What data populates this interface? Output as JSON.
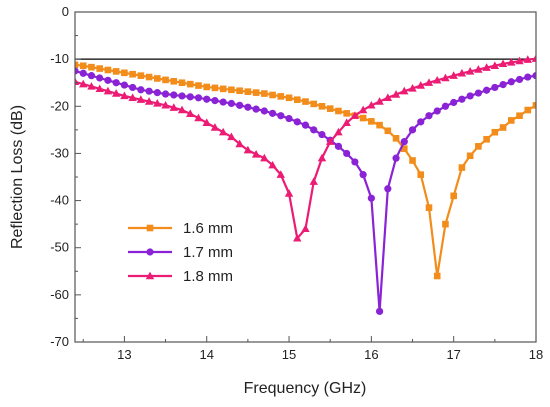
{
  "chart_data": {
    "type": "line",
    "xlabel": "Frequency (GHz)",
    "ylabel": "Reflection Loss (dB)",
    "xlim": [
      12.4,
      18
    ],
    "ylim": [
      -70,
      0
    ],
    "xticks": [
      13,
      14,
      15,
      16,
      17,
      18
    ],
    "yticks": [
      0,
      -10,
      -20,
      -30,
      -40,
      -50,
      -60,
      -70
    ],
    "reference_line": {
      "y": -10,
      "color": "#000000"
    },
    "legend_position": "lower-left",
    "series": [
      {
        "name": "1.6 mm",
        "color": "#f28c1a",
        "marker": "square",
        "x": [
          12.4,
          12.5,
          12.6,
          12.7,
          12.8,
          12.9,
          13.0,
          13.1,
          13.2,
          13.3,
          13.4,
          13.5,
          13.6,
          13.7,
          13.8,
          13.9,
          14.0,
          14.1,
          14.2,
          14.3,
          14.4,
          14.5,
          14.6,
          14.7,
          14.8,
          14.9,
          15.0,
          15.1,
          15.2,
          15.3,
          15.4,
          15.5,
          15.6,
          15.7,
          15.8,
          15.9,
          16.0,
          16.1,
          16.2,
          16.3,
          16.4,
          16.5,
          16.6,
          16.7,
          16.8,
          16.9,
          17.0,
          17.1,
          17.2,
          17.3,
          17.4,
          17.5,
          17.6,
          17.7,
          17.8,
          17.9,
          18.0
        ],
        "y": [
          -11.2,
          -11.4,
          -11.7,
          -12.0,
          -12.3,
          -12.6,
          -12.9,
          -13.2,
          -13.5,
          -13.8,
          -14.1,
          -14.4,
          -14.7,
          -15.0,
          -15.3,
          -15.6,
          -15.9,
          -16.1,
          -16.3,
          -16.5,
          -16.7,
          -16.9,
          -17.1,
          -17.3,
          -17.6,
          -17.9,
          -18.2,
          -18.6,
          -19.0,
          -19.5,
          -20.0,
          -20.5,
          -21.0,
          -21.5,
          -22.0,
          -22.5,
          -23.2,
          -24.0,
          -25.2,
          -26.8,
          -29.0,
          -31.5,
          -34.5,
          -41.5,
          -56.0,
          -45.0,
          -39.0,
          -33.0,
          -30.5,
          -28.5,
          -27.0,
          -25.5,
          -24.5,
          -23.0,
          -22.0,
          -20.8,
          -19.8
        ]
      },
      {
        "name": "1.7 mm",
        "color": "#8a22d6",
        "marker": "circle",
        "x": [
          12.4,
          12.5,
          12.6,
          12.7,
          12.8,
          12.9,
          13.0,
          13.1,
          13.2,
          13.3,
          13.4,
          13.5,
          13.6,
          13.7,
          13.8,
          13.9,
          14.0,
          14.1,
          14.2,
          14.3,
          14.4,
          14.5,
          14.6,
          14.7,
          14.8,
          14.9,
          15.0,
          15.1,
          15.2,
          15.3,
          15.4,
          15.5,
          15.6,
          15.7,
          15.8,
          15.9,
          16.0,
          16.1,
          16.2,
          16.3,
          16.4,
          16.5,
          16.6,
          16.7,
          16.8,
          16.9,
          17.0,
          17.1,
          17.2,
          17.3,
          17.4,
          17.5,
          17.6,
          17.7,
          17.8,
          17.9,
          18.0
        ],
        "y": [
          -12.5,
          -13.0,
          -13.5,
          -14.0,
          -14.5,
          -15.0,
          -15.5,
          -16.0,
          -16.5,
          -16.8,
          -17.1,
          -17.4,
          -17.6,
          -17.8,
          -18.0,
          -18.2,
          -18.5,
          -18.8,
          -19.1,
          -19.4,
          -19.8,
          -20.2,
          -20.6,
          -21.0,
          -21.5,
          -22.0,
          -22.6,
          -23.3,
          -24.0,
          -25.0,
          -26.0,
          -27.2,
          -28.5,
          -30.0,
          -31.8,
          -34.5,
          -39.5,
          -63.5,
          -37.5,
          -31.0,
          -27.5,
          -25.0,
          -23.3,
          -22.0,
          -21.0,
          -20.0,
          -19.2,
          -18.5,
          -17.8,
          -17.2,
          -16.6,
          -16.0,
          -15.4,
          -14.8,
          -14.3,
          -13.8,
          -13.5
        ]
      },
      {
        "name": "1.8 mm",
        "color": "#ec1b74",
        "marker": "triangle",
        "x": [
          12.4,
          12.5,
          12.6,
          12.7,
          12.8,
          12.9,
          13.0,
          13.1,
          13.2,
          13.3,
          13.4,
          13.5,
          13.6,
          13.7,
          13.8,
          13.9,
          14.0,
          14.1,
          14.2,
          14.3,
          14.4,
          14.5,
          14.6,
          14.7,
          14.8,
          14.9,
          15.0,
          15.1,
          15.2,
          15.3,
          15.4,
          15.5,
          15.6,
          15.7,
          15.8,
          15.9,
          16.0,
          16.1,
          16.2,
          16.3,
          16.4,
          16.5,
          16.6,
          16.7,
          16.8,
          16.9,
          17.0,
          17.1,
          17.2,
          17.3,
          17.4,
          17.5,
          17.6,
          17.7,
          17.8,
          17.9,
          18.0
        ],
        "y": [
          -14.8,
          -15.3,
          -15.8,
          -16.3,
          -16.8,
          -17.3,
          -17.8,
          -18.2,
          -18.6,
          -19.0,
          -19.4,
          -19.8,
          -20.3,
          -20.8,
          -21.6,
          -22.5,
          -23.5,
          -24.5,
          -25.5,
          -26.5,
          -28.0,
          -29.3,
          -30.2,
          -31.0,
          -32.5,
          -34.5,
          -38.5,
          -48.0,
          -46.0,
          -36.0,
          -31.0,
          -27.5,
          -25.5,
          -23.5,
          -22.0,
          -20.8,
          -19.8,
          -19.0,
          -18.2,
          -17.5,
          -16.8,
          -16.2,
          -15.6,
          -15.0,
          -14.5,
          -14.0,
          -13.5,
          -13.0,
          -12.6,
          -12.2,
          -11.8,
          -11.4,
          -11.0,
          -10.7,
          -10.4,
          -10.1,
          -9.9
        ]
      }
    ]
  }
}
